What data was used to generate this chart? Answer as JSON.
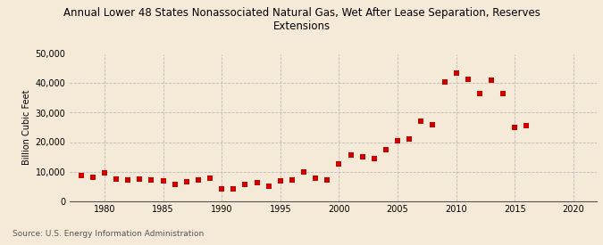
{
  "title": "Annual Lower 48 States Nonassociated Natural Gas, Wet After Lease Separation, Reserves\nExtensions",
  "ylabel": "Billion Cubic Feet",
  "source": "Source: U.S. Energy Information Administration",
  "background_color": "#f5ead8",
  "plot_background_color": "#f5ead8",
  "marker_color": "#cc0000",
  "marker": "s",
  "marker_size": 4,
  "xlim": [
    1977,
    2022
  ],
  "ylim": [
    0,
    50000
  ],
  "xticks": [
    1980,
    1985,
    1990,
    1995,
    2000,
    2005,
    2010,
    2015,
    2020
  ],
  "yticks": [
    0,
    10000,
    20000,
    30000,
    40000,
    50000
  ],
  "years": [
    1978,
    1979,
    1980,
    1981,
    1982,
    1983,
    1984,
    1985,
    1986,
    1987,
    1988,
    1989,
    1990,
    1991,
    1992,
    1993,
    1994,
    1995,
    1996,
    1997,
    1998,
    1999,
    2000,
    2001,
    2002,
    2003,
    2004,
    2005,
    2006,
    2007,
    2008,
    2009,
    2010,
    2011,
    2012,
    2013,
    2014,
    2015,
    2016
  ],
  "values": [
    8500,
    8000,
    9500,
    7500,
    7200,
    7500,
    7200,
    6800,
    5500,
    6500,
    7000,
    7800,
    4200,
    4000,
    5500,
    6200,
    5000,
    6800,
    7200,
    10000,
    7800,
    7200,
    12500,
    15500,
    15000,
    14500,
    17500,
    20500,
    21000,
    27000,
    26000,
    40500,
    43500,
    41500,
    36500,
    41000,
    36500,
    25000,
    25500
  ]
}
